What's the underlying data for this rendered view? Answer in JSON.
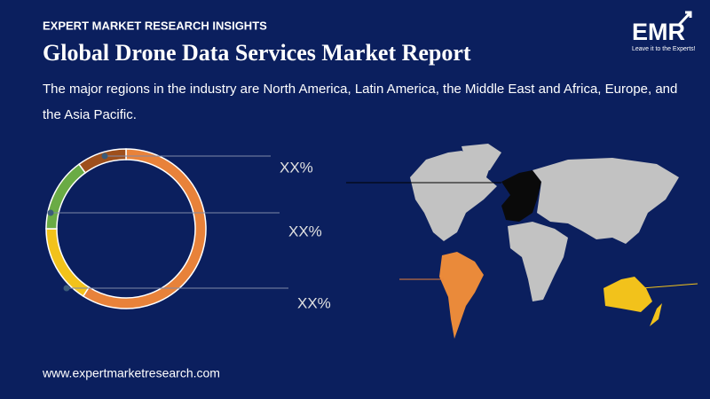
{
  "header": {
    "kicker": "EXPERT MARKET RESEARCH INSIGHTS",
    "title": "Global Drone Data Services Market Report",
    "description": "The major regions in the industry are North America, Latin America, the Middle East and Africa, Europe, and the Asia Pacific."
  },
  "logo": {
    "name": "EMR",
    "tagline": "Leave it to the Experts!"
  },
  "chart_data": {
    "type": "donut",
    "values": [
      59,
      16,
      15,
      10
    ],
    "colors": [
      "#e8823a",
      "#f2c21b",
      "#6aab45",
      "#9e4f1c"
    ],
    "annotations": [
      "XX%",
      "XX%",
      "XX%"
    ]
  },
  "footer": {
    "website": "www.expertmarketresearch.com"
  }
}
